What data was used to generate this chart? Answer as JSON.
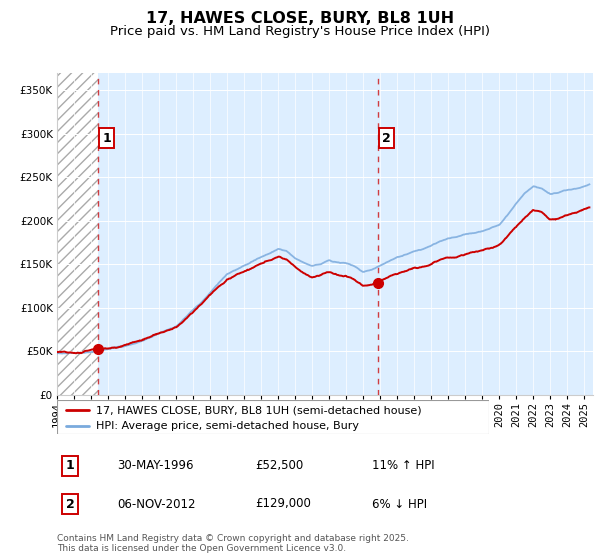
{
  "title": "17, HAWES CLOSE, BURY, BL8 1UH",
  "subtitle": "Price paid vs. HM Land Registry's House Price Index (HPI)",
  "legend_line1": "17, HAWES CLOSE, BURY, BL8 1UH (semi-detached house)",
  "legend_line2": "HPI: Average price, semi-detached house, Bury",
  "footer": "Contains HM Land Registry data © Crown copyright and database right 2025.\nThis data is licensed under the Open Government Licence v3.0.",
  "annotation1_label": "1",
  "annotation1_date": "30-MAY-1996",
  "annotation1_price": "£52,500",
  "annotation1_hpi": "11% ↑ HPI",
  "annotation2_label": "2",
  "annotation2_date": "06-NOV-2012",
  "annotation2_price": "£129,000",
  "annotation2_hpi": "6% ↓ HPI",
  "ylim": [
    0,
    370000
  ],
  "xlim_start": 1994.0,
  "xlim_end": 2025.5,
  "hatch_end_year": 1996.42,
  "sale1_year": 1996.42,
  "sale2_year": 2012.85,
  "sale1_price": 52500,
  "sale2_price": 129000,
  "line_color_red": "#cc0000",
  "line_color_blue": "#7aaadd",
  "background_color": "#ddeeff",
  "grid_color": "#ffffff",
  "title_fontsize": 11.5,
  "subtitle_fontsize": 9.5,
  "tick_fontsize": 7.5,
  "legend_fontsize": 8,
  "annotation_fontsize": 8.5,
  "footer_fontsize": 6.5,
  "yticks": [
    0,
    50000,
    100000,
    150000,
    200000,
    250000,
    300000,
    350000
  ],
  "years_hpi": [
    1994,
    1994.5,
    1995,
    1995.5,
    1996,
    1996.5,
    1997,
    1997.5,
    1998,
    1998.5,
    1999,
    1999.5,
    2000,
    2000.5,
    2001,
    2001.5,
    2002,
    2002.5,
    2003,
    2003.5,
    2004,
    2004.5,
    2005,
    2005.5,
    2006,
    2006.5,
    2007,
    2007.5,
    2008,
    2008.5,
    2009,
    2009.5,
    2010,
    2010.5,
    2011,
    2011.5,
    2012,
    2012.5,
    2013,
    2013.5,
    2014,
    2014.5,
    2015,
    2015.5,
    2016,
    2016.5,
    2017,
    2017.5,
    2018,
    2018.5,
    2019,
    2019.5,
    2020,
    2020.5,
    2021,
    2021.5,
    2022,
    2022.5,
    2023,
    2023.5,
    2024,
    2024.5,
    2025,
    2025.3
  ],
  "hpi_values": [
    47000,
    47200,
    47500,
    48000,
    49000,
    50500,
    52000,
    54000,
    56000,
    59000,
    62000,
    66000,
    71000,
    75000,
    79000,
    88000,
    97000,
    107000,
    118000,
    128000,
    138000,
    143000,
    148000,
    153000,
    158000,
    163000,
    168000,
    165000,
    158000,
    153000,
    148000,
    150000,
    155000,
    153000,
    152000,
    148000,
    142000,
    144000,
    148000,
    153000,
    158000,
    161000,
    165000,
    168000,
    172000,
    176000,
    180000,
    182000,
    185000,
    186000,
    188000,
    191000,
    195000,
    207000,
    220000,
    232000,
    240000,
    237000,
    230000,
    232000,
    235000,
    237000,
    240000,
    242000
  ]
}
